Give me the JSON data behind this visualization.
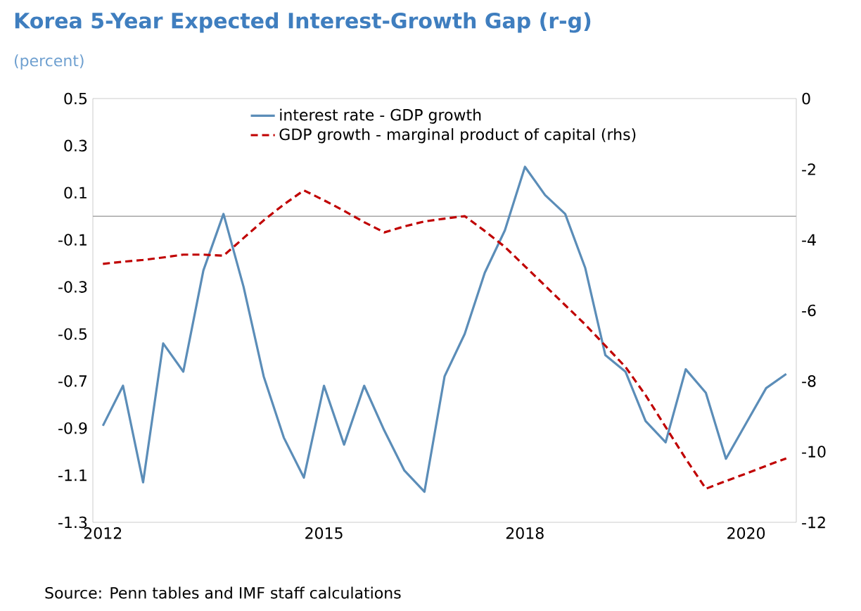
{
  "chart_data": {
    "type": "line",
    "title": "Korea 5-Year Expected Interest-Growth Gap (r-g)",
    "subtitle": "(percent)",
    "categories": [
      "2012",
      null,
      null,
      null,
      null,
      null,
      null,
      null,
      null,
      null,
      null,
      "2015",
      null,
      null,
      null,
      null,
      null,
      null,
      null,
      null,
      null,
      "2018",
      null,
      null,
      null,
      null,
      null,
      null,
      null,
      null,
      null,
      null,
      "2020",
      null,
      null
    ],
    "series": [
      {
        "name": "interest rate - GDP growth",
        "color": "#5b8db8",
        "line_style": "solid",
        "values": [
          -0.89,
          -0.72,
          -1.13,
          -0.54,
          -0.66,
          -0.23,
          0.01,
          -0.3,
          -0.68,
          -0.94,
          -1.11,
          -0.72,
          -0.97,
          -0.72,
          -0.91,
          -1.08,
          -1.17,
          -0.68,
          -0.5,
          -0.24,
          -0.06,
          0.21,
          0.09,
          0.01,
          -0.22,
          -0.59,
          -0.66,
          -0.87,
          -0.96,
          -0.65,
          -0.75,
          -1.03,
          -0.88,
          -0.73,
          -0.67
        ]
      },
      {
        "name": "GDP growth - marginal product of capital (rhs)",
        "color": "#c00000",
        "line_style": "dashed",
        "axis": "y2",
        "values": [
          -4.68,
          -4.62,
          -4.57,
          -4.5,
          -4.42,
          -4.42,
          -4.45,
          -3.95,
          -3.45,
          -3.0,
          -2.6,
          -2.88,
          -3.18,
          -3.5,
          -3.79,
          -3.62,
          -3.48,
          -3.4,
          -3.33,
          -3.75,
          -4.2,
          -4.75,
          -5.3,
          -5.85,
          -6.4,
          -7.0,
          -7.6,
          -8.4,
          -9.3,
          -10.2,
          -11.05,
          -10.83,
          -10.62,
          -10.4,
          -10.19
        ]
      }
    ],
    "ylim": [
      -1.3,
      0.5
    ],
    "yticks": [
      0.5,
      0.3,
      0.1,
      -0.1,
      -0.3,
      -0.5,
      -0.7,
      -0.9,
      -1.1,
      -1.3
    ],
    "y2lim": [
      -12,
      0
    ],
    "y2ticks": [
      0,
      -2,
      -4,
      -6,
      -8,
      -10,
      -12
    ],
    "ref_lines": [
      {
        "axis": "y",
        "value": 0,
        "color": "#a6a6a6"
      }
    ],
    "legend": "top",
    "marker": "none",
    "grid": false,
    "annotations": [
      "Source: Penn tables and IMF staff calculations"
    ]
  }
}
